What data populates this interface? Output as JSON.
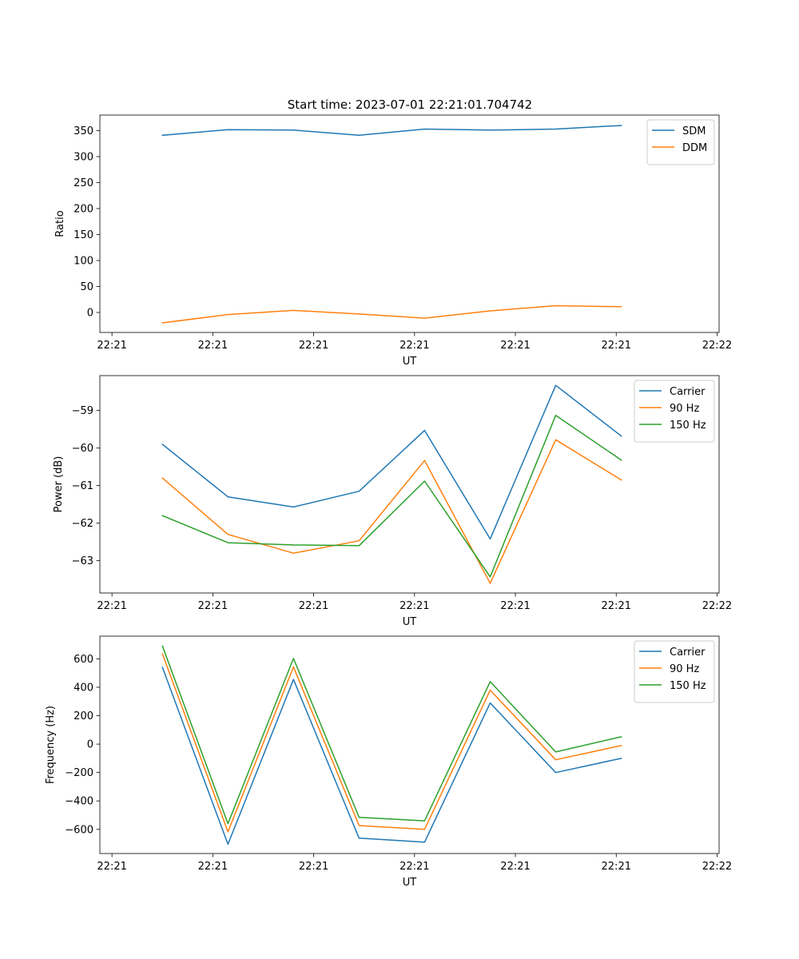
{
  "figure_title": "Start time: 2023-07-01 22:21:01.704742",
  "chart_data": [
    {
      "type": "line",
      "xlabel": "UT",
      "ylabel": "Ratio",
      "x_tick_labels": [
        "22:21",
        "22:21",
        "22:21",
        "22:21",
        "22:21",
        "22:21",
        "22:22"
      ],
      "x_tick_values": [
        0,
        1,
        2,
        3,
        4,
        5,
        6
      ],
      "xlim": [
        -0.12,
        6.02
      ],
      "y_ticks": [
        0,
        50,
        100,
        150,
        200,
        250,
        300,
        350
      ],
      "ylim": [
        -38.5,
        380
      ],
      "legend_position": "top-right",
      "series": [
        {
          "name": "SDM",
          "color": "#1f77b4",
          "x": [
            0.5,
            1.15,
            1.8,
            2.45,
            3.1,
            3.75,
            4.4,
            5.05
          ],
          "y": [
            341,
            352,
            351,
            341,
            353,
            351,
            353,
            360
          ]
        },
        {
          "name": "DDM",
          "color": "#ff7f0e",
          "x": [
            0.5,
            1.15,
            1.8,
            2.45,
            3.1,
            3.75,
            4.4,
            5.05
          ],
          "y": [
            -20,
            -4,
            4,
            -3,
            -11,
            3,
            13,
            11
          ]
        }
      ]
    },
    {
      "type": "line",
      "xlabel": "UT",
      "ylabel": "Power (dB)",
      "x_tick_labels": [
        "22:21",
        "22:21",
        "22:21",
        "22:21",
        "22:21",
        "22:21",
        "22:22"
      ],
      "x_tick_values": [
        0,
        1,
        2,
        3,
        4,
        5,
        6
      ],
      "xlim": [
        -0.12,
        6.02
      ],
      "y_ticks": [
        -63,
        -62,
        -61,
        -60,
        -59
      ],
      "ylim": [
        -63.86,
        -58.07
      ],
      "legend_position": "top-right",
      "series": [
        {
          "name": "Carrier",
          "color": "#1f77b4",
          "x": [
            0.5,
            1.15,
            1.8,
            2.45,
            3.1,
            3.75,
            4.4,
            5.05
          ],
          "y": [
            -59.9,
            -61.3,
            -61.57,
            -61.15,
            -59.53,
            -62.42,
            -58.33,
            -59.68
          ]
        },
        {
          "name": "90 Hz",
          "color": "#ff7f0e",
          "x": [
            0.5,
            1.15,
            1.8,
            2.45,
            3.1,
            3.75,
            4.4,
            5.05
          ],
          "y": [
            -60.8,
            -62.3,
            -62.8,
            -62.47,
            -60.33,
            -63.6,
            -59.78,
            -60.85
          ]
        },
        {
          "name": "150 Hz",
          "color": "#2ca02c",
          "x": [
            0.5,
            1.15,
            1.8,
            2.45,
            3.1,
            3.75,
            4.4,
            5.05
          ],
          "y": [
            -61.8,
            -62.52,
            -62.58,
            -62.6,
            -60.88,
            -63.43,
            -59.13,
            -60.32
          ]
        }
      ]
    },
    {
      "type": "line",
      "xlabel": "UT",
      "ylabel": "Frequency (Hz)",
      "x_tick_labels": [
        "22:21",
        "22:21",
        "22:21",
        "22:21",
        "22:21",
        "22:21",
        "22:22"
      ],
      "x_tick_values": [
        0,
        1,
        2,
        3,
        4,
        5,
        6
      ],
      "xlim": [
        -0.12,
        6.02
      ],
      "y_ticks": [
        -600,
        -400,
        -200,
        0,
        200,
        400,
        600
      ],
      "ylim": [
        -770,
        760
      ],
      "legend_position": "top-right",
      "series": [
        {
          "name": "Carrier",
          "color": "#1f77b4",
          "x": [
            0.5,
            1.15,
            1.8,
            2.45,
            3.1,
            3.75,
            4.4,
            5.05
          ],
          "y": [
            540,
            -705,
            455,
            -662,
            -690,
            290,
            -200,
            -100
          ]
        },
        {
          "name": "90 Hz",
          "color": "#ff7f0e",
          "x": [
            0.5,
            1.15,
            1.8,
            2.45,
            3.1,
            3.75,
            4.4,
            5.05
          ],
          "y": [
            635,
            -617,
            543,
            -573,
            -600,
            380,
            -110,
            -10
          ]
        },
        {
          "name": "150 Hz",
          "color": "#2ca02c",
          "x": [
            0.5,
            1.15,
            1.8,
            2.45,
            3.1,
            3.75,
            4.4,
            5.05
          ],
          "y": [
            690,
            -560,
            603,
            -515,
            -540,
            440,
            -55,
            52
          ]
        }
      ]
    }
  ]
}
